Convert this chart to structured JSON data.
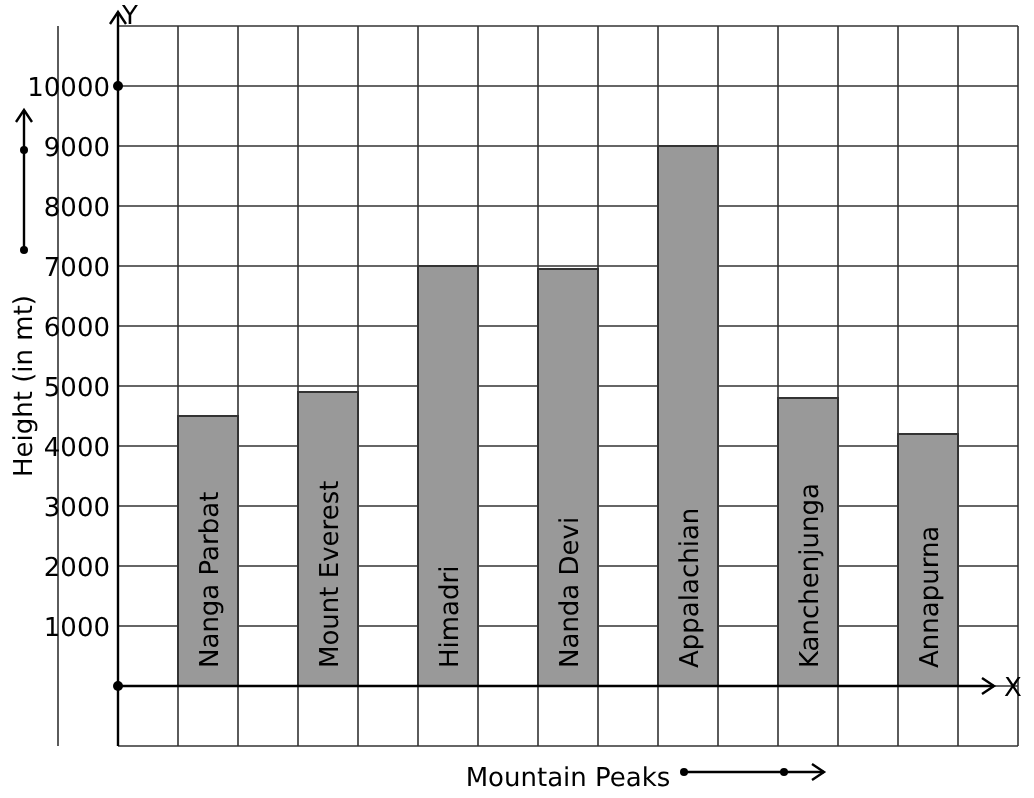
{
  "chart_data": {
    "type": "bar",
    "xlabel": "Mountain Peaks",
    "ylabel": "Height (in mt)",
    "categories": [
      "Nanga Parbat",
      "Mount Everest",
      "Himadri",
      "Nanda Devi",
      "Appalachian",
      "Kanchenjunga",
      "Annapurna"
    ],
    "values": [
      4500,
      4900,
      7000,
      6950,
      9000,
      4800,
      4200
    ],
    "color": "#999999",
    "ylim": [
      -1000,
      11000
    ],
    "yticks": [
      {
        "value": -1000,
        "label": null
      },
      {
        "value": 0,
        "label": null
      },
      1000,
      2000,
      3000,
      4000,
      5000,
      6000,
      7000,
      8000,
      9000,
      10000,
      {
        "value": 11000,
        "label": null
      }
    ],
    "grid": true,
    "annotations": [
      "Y",
      "X"
    ]
  }
}
